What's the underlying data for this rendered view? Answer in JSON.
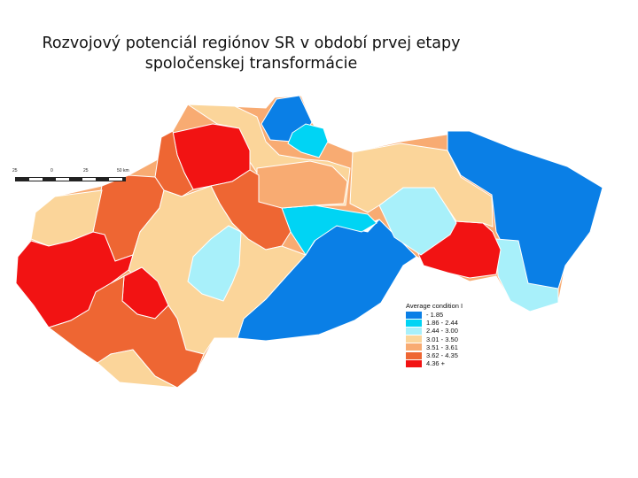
{
  "title": {
    "line1": "Rozvojový potenciál regiónov SR v období prvej etapy",
    "line2": "spoločenskej transformácie"
  },
  "scale": {
    "ticks": [
      "25",
      "0",
      "25",
      "50 km"
    ]
  },
  "legend": {
    "title": "Average condition I",
    "classes": [
      {
        "label": "- 1.85",
        "color": "#0a7fe6"
      },
      {
        "label": "1.86 - 2.44",
        "color": "#00d4f4"
      },
      {
        "label": "2.44 - 3.00",
        "color": "#a8f0fa"
      },
      {
        "label": "3.01 - 3.50",
        "color": "#fbd59a"
      },
      {
        "label": "3.51 - 3.61",
        "color": "#f8ab72"
      },
      {
        "label": "3.62 - 4.35",
        "color": "#ee6633"
      },
      {
        "label": "4.36 +",
        "color": "#f21313"
      }
    ]
  }
}
